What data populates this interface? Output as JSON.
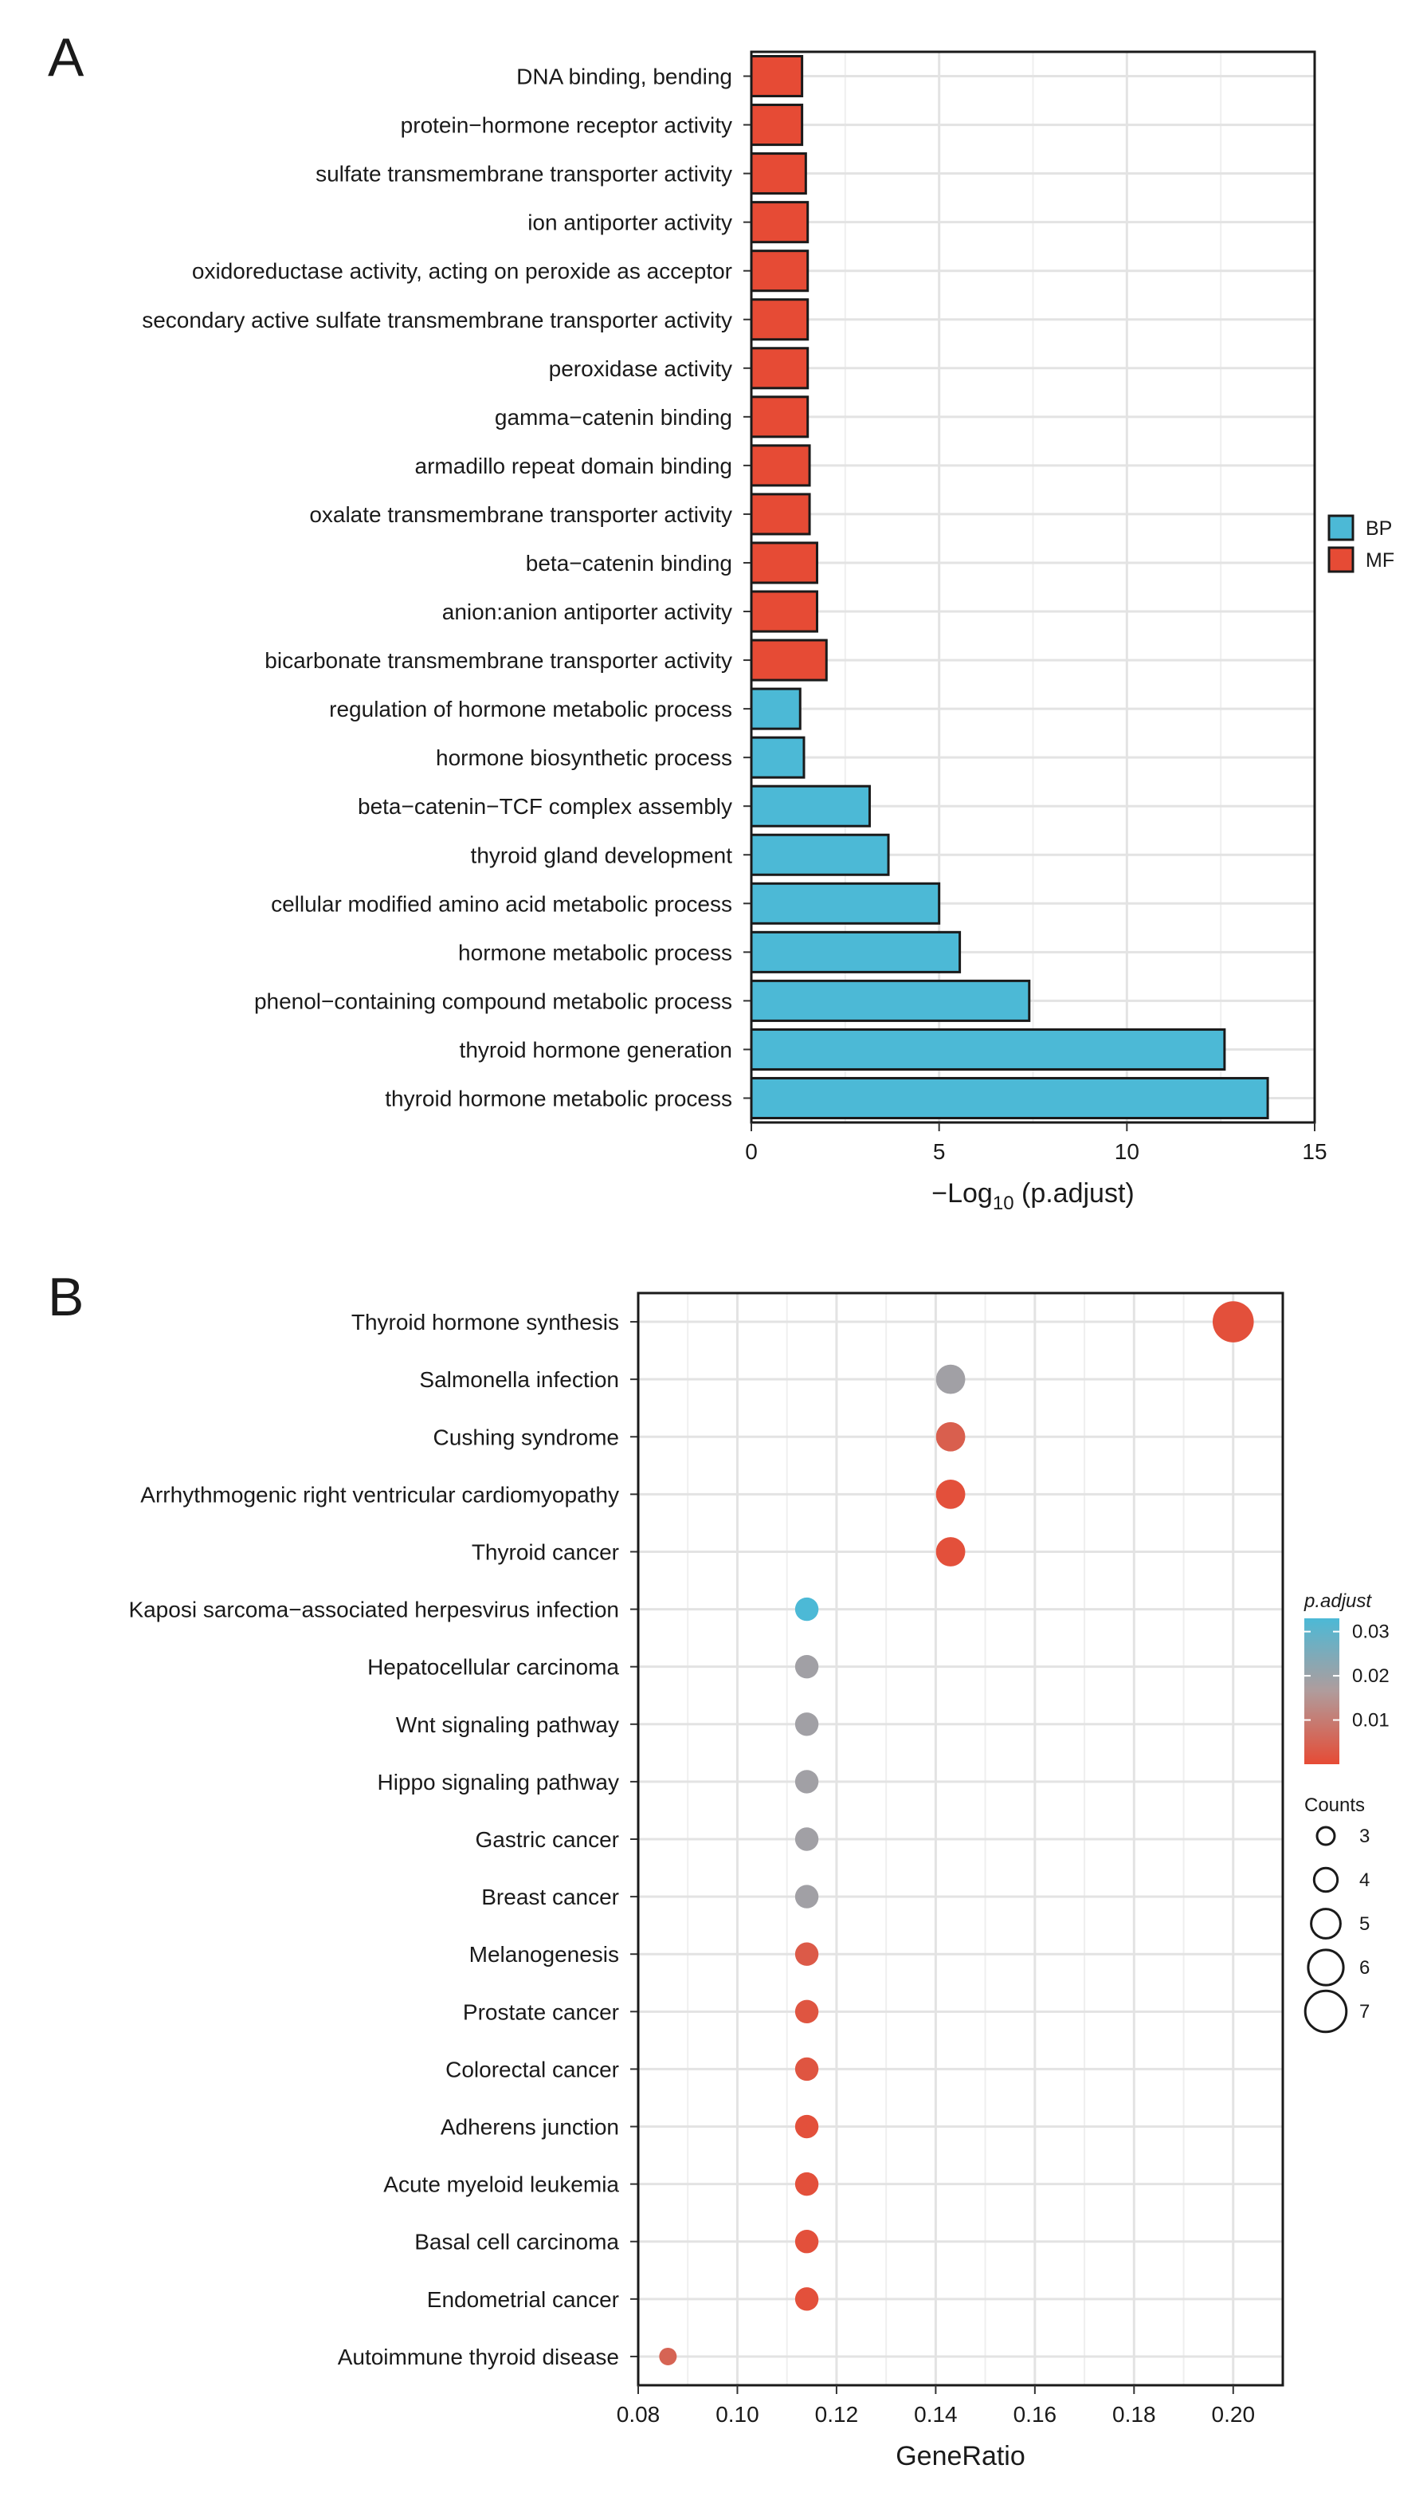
{
  "chart_data": [
    {
      "panel": "A",
      "type": "bar",
      "orientation": "horizontal",
      "xlabel_main": "−Log",
      "xlabel_sub": "10",
      "xlabel_tail": " (p.adjust)",
      "xlim": [
        0,
        15
      ],
      "xticks": [
        0,
        5,
        10,
        15
      ],
      "grid": true,
      "legend_position": "right",
      "legend": [
        {
          "name": "BP",
          "color": "#4cb9d6"
        },
        {
          "name": "MF",
          "color": "#e64b35"
        }
      ],
      "categories": [
        "DNA binding, bending",
        "protein−hormone receptor activity",
        "sulfate transmembrane transporter activity",
        "ion antiporter activity",
        "oxidoreductase activity, acting on peroxide as acceptor",
        "secondary active sulfate transmembrane transporter activity",
        "peroxidase activity",
        "gamma−catenin binding",
        "armadillo repeat domain binding",
        "oxalate transmembrane transporter activity",
        "beta−catenin binding",
        "anion:anion antiporter activity",
        "bicarbonate transmembrane transporter activity",
        "regulation of hormone metabolic process",
        "hormone biosynthetic process",
        "beta−catenin−TCF complex assembly",
        "thyroid gland development",
        "cellular modified amino acid metabolic process",
        "hormone metabolic process",
        "phenol−containing compound metabolic process",
        "thyroid hormone generation",
        "thyroid hormone metabolic process"
      ],
      "values": [
        1.35,
        1.35,
        1.45,
        1.5,
        1.5,
        1.5,
        1.5,
        1.5,
        1.55,
        1.55,
        1.75,
        1.75,
        2.0,
        1.3,
        1.4,
        3.15,
        3.65,
        5.0,
        5.55,
        7.4,
        12.6,
        13.75
      ],
      "group": [
        "MF",
        "MF",
        "MF",
        "MF",
        "MF",
        "MF",
        "MF",
        "MF",
        "MF",
        "MF",
        "MF",
        "MF",
        "MF",
        "BP",
        "BP",
        "BP",
        "BP",
        "BP",
        "BP",
        "BP",
        "BP",
        "BP"
      ]
    },
    {
      "panel": "B",
      "type": "scatter",
      "xlabel": "GeneRatio",
      "xlim": [
        0.08,
        0.21
      ],
      "xticks": [
        "0.08",
        "0.10",
        "0.12",
        "0.14",
        "0.16",
        "0.18",
        "0.20"
      ],
      "grid": true,
      "legend_position": "right",
      "color_legend_title": "p.adjust",
      "color_scale": {
        "low": "#e64b35",
        "mid": "#b09c9c",
        "high": "#4cb9d6",
        "min": 0.0,
        "max": 0.033
      },
      "color_ticks": [
        "0.03",
        "0.02",
        "0.01"
      ],
      "color_tick_values": [
        0.03,
        0.02,
        0.01
      ],
      "size_legend_title": "Counts",
      "size_legend": [
        3,
        4,
        5,
        6,
        7
      ],
      "categories": [
        "Thyroid hormone synthesis",
        "Salmonella infection",
        "Cushing syndrome",
        "Arrhythmogenic right ventricular cardiomyopathy",
        "Thyroid cancer",
        "Kaposi sarcoma−associated herpesvirus infection",
        "Hepatocellular carcinoma",
        "Wnt signaling pathway",
        "Hippo signaling pathway",
        "Gastric cancer",
        "Breast cancer",
        "Melanogenesis",
        "Prostate cancer",
        "Colorectal cancer",
        "Adherens junction",
        "Acute myeloid leukemia",
        "Basal cell carcinoma",
        "Endometrial cancer",
        "Autoimmune thyroid disease"
      ],
      "gene_ratio": [
        0.2,
        0.143,
        0.143,
        0.143,
        0.143,
        0.114,
        0.114,
        0.114,
        0.114,
        0.114,
        0.114,
        0.114,
        0.114,
        0.114,
        0.114,
        0.114,
        0.114,
        0.114,
        0.086
      ],
      "counts": [
        7,
        5,
        5,
        5,
        5,
        4,
        4,
        4,
        4,
        4,
        4,
        4,
        4,
        4,
        4,
        4,
        4,
        4,
        3
      ],
      "p_adjust": [
        0.001,
        0.019,
        0.004,
        0.001,
        0.001,
        0.033,
        0.019,
        0.019,
        0.019,
        0.019,
        0.019,
        0.003,
        0.002,
        0.002,
        0.001,
        0.001,
        0.001,
        0.001,
        0.005
      ]
    }
  ],
  "panel_labels": {
    "a": "A",
    "b": "B"
  }
}
